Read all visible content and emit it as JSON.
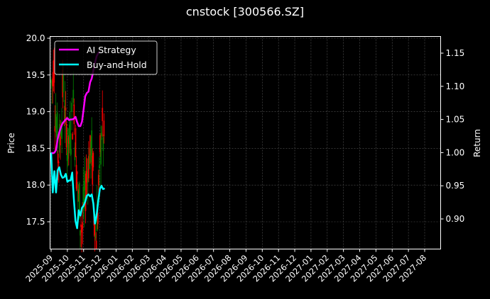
{
  "figure": {
    "title": "cnstock [300566.SZ]",
    "background": "#000000"
  },
  "chart_data": {
    "type": "line",
    "title": "cnstock [300566.SZ]",
    "xlabel": "",
    "ylabel": "Price",
    "ylabel_right": "Return",
    "ylim": [
      17.15,
      20.03
    ],
    "ylim_right": [
      0.855,
      1.175
    ],
    "grid": true,
    "legend_position": "upper left",
    "x_tick_labels": [
      "2025-09",
      "2025-10",
      "2025-11",
      "2025-12",
      "2026-01",
      "2026-02",
      "2026-03",
      "2026-04",
      "2026-05",
      "2026-06",
      "2026-07",
      "2026-08",
      "2026-09",
      "2026-10",
      "2026-11",
      "2026-12",
      "2027-01",
      "2027-02",
      "2027-03",
      "2027-04",
      "2027-05",
      "2027-06",
      "2027-07",
      "2027-08"
    ],
    "y_ticks_left": [
      "17.5",
      "18.0",
      "18.5",
      "19.0",
      "19.5",
      "20.0"
    ],
    "y_ticks_right": [
      "0.90",
      "0.95",
      "1.00",
      "1.05",
      "1.10",
      "1.15"
    ],
    "series": [
      {
        "name": "AI Strategy",
        "axis": "right",
        "color": "#ff00ff",
        "x_month_offset": [
          0.0,
          0.1,
          0.2,
          0.3,
          0.4,
          0.5,
          0.6,
          0.7,
          0.8,
          0.9,
          1.0,
          1.1,
          1.2,
          1.3,
          1.4,
          1.5,
          1.6,
          1.7,
          1.8,
          1.9,
          2.0,
          2.1,
          2.2,
          2.3,
          2.4,
          2.5,
          2.6,
          2.7,
          2.8,
          2.9,
          3.0
        ],
        "values": [
          1.0,
          0.999,
          1.0,
          1.004,
          1.02,
          1.03,
          1.038,
          1.044,
          1.047,
          1.05,
          1.052,
          1.049,
          1.05,
          1.05,
          1.051,
          1.054,
          1.046,
          1.04,
          1.04,
          1.047,
          1.065,
          1.085,
          1.09,
          1.092,
          1.106,
          1.112,
          1.124,
          1.135,
          1.145,
          1.15,
          1.152
        ]
      },
      {
        "name": "Buy-and-Hold",
        "axis": "right",
        "color": "#00ffff",
        "x_month_offset": [
          0.0,
          0.1,
          0.2,
          0.3,
          0.4,
          0.5,
          0.6,
          0.7,
          0.8,
          0.9,
          1.0,
          1.1,
          1.2,
          1.3,
          1.4,
          1.5,
          1.6,
          1.7,
          1.8,
          1.9,
          2.0,
          2.1,
          2.2,
          2.3,
          2.4,
          2.5,
          2.6,
          2.7,
          2.8,
          2.9,
          3.0,
          3.1,
          3.2,
          3.3
        ],
        "values": [
          1.0,
          0.94,
          0.972,
          0.94,
          0.973,
          0.978,
          0.967,
          0.962,
          0.963,
          0.968,
          0.956,
          0.958,
          0.958,
          0.97,
          0.93,
          0.897,
          0.886,
          0.913,
          0.905,
          0.917,
          0.92,
          0.926,
          0.935,
          0.937,
          0.934,
          0.937,
          0.923,
          0.893,
          0.905,
          0.927,
          0.945,
          0.95,
          0.945,
          0.946
        ]
      },
      {
        "name": "Price (candlesticks)",
        "axis": "left",
        "type": "candlestick",
        "up_color": "#008000",
        "down_color": "#ff0000",
        "range_high": 19.85,
        "range_low": 17.2,
        "period": "2025-09 to 2025-12"
      }
    ]
  },
  "legend": {
    "items": [
      {
        "label": "AI Strategy",
        "color": "#ff00ff"
      },
      {
        "label": "Buy-and-Hold",
        "color": "#00ffff"
      }
    ]
  },
  "colors": {
    "axis": "#ffffff",
    "grid": "#555555",
    "up": "#008000",
    "down": "#ff0000",
    "ai": "#ff00ff",
    "bh": "#00ffff"
  }
}
